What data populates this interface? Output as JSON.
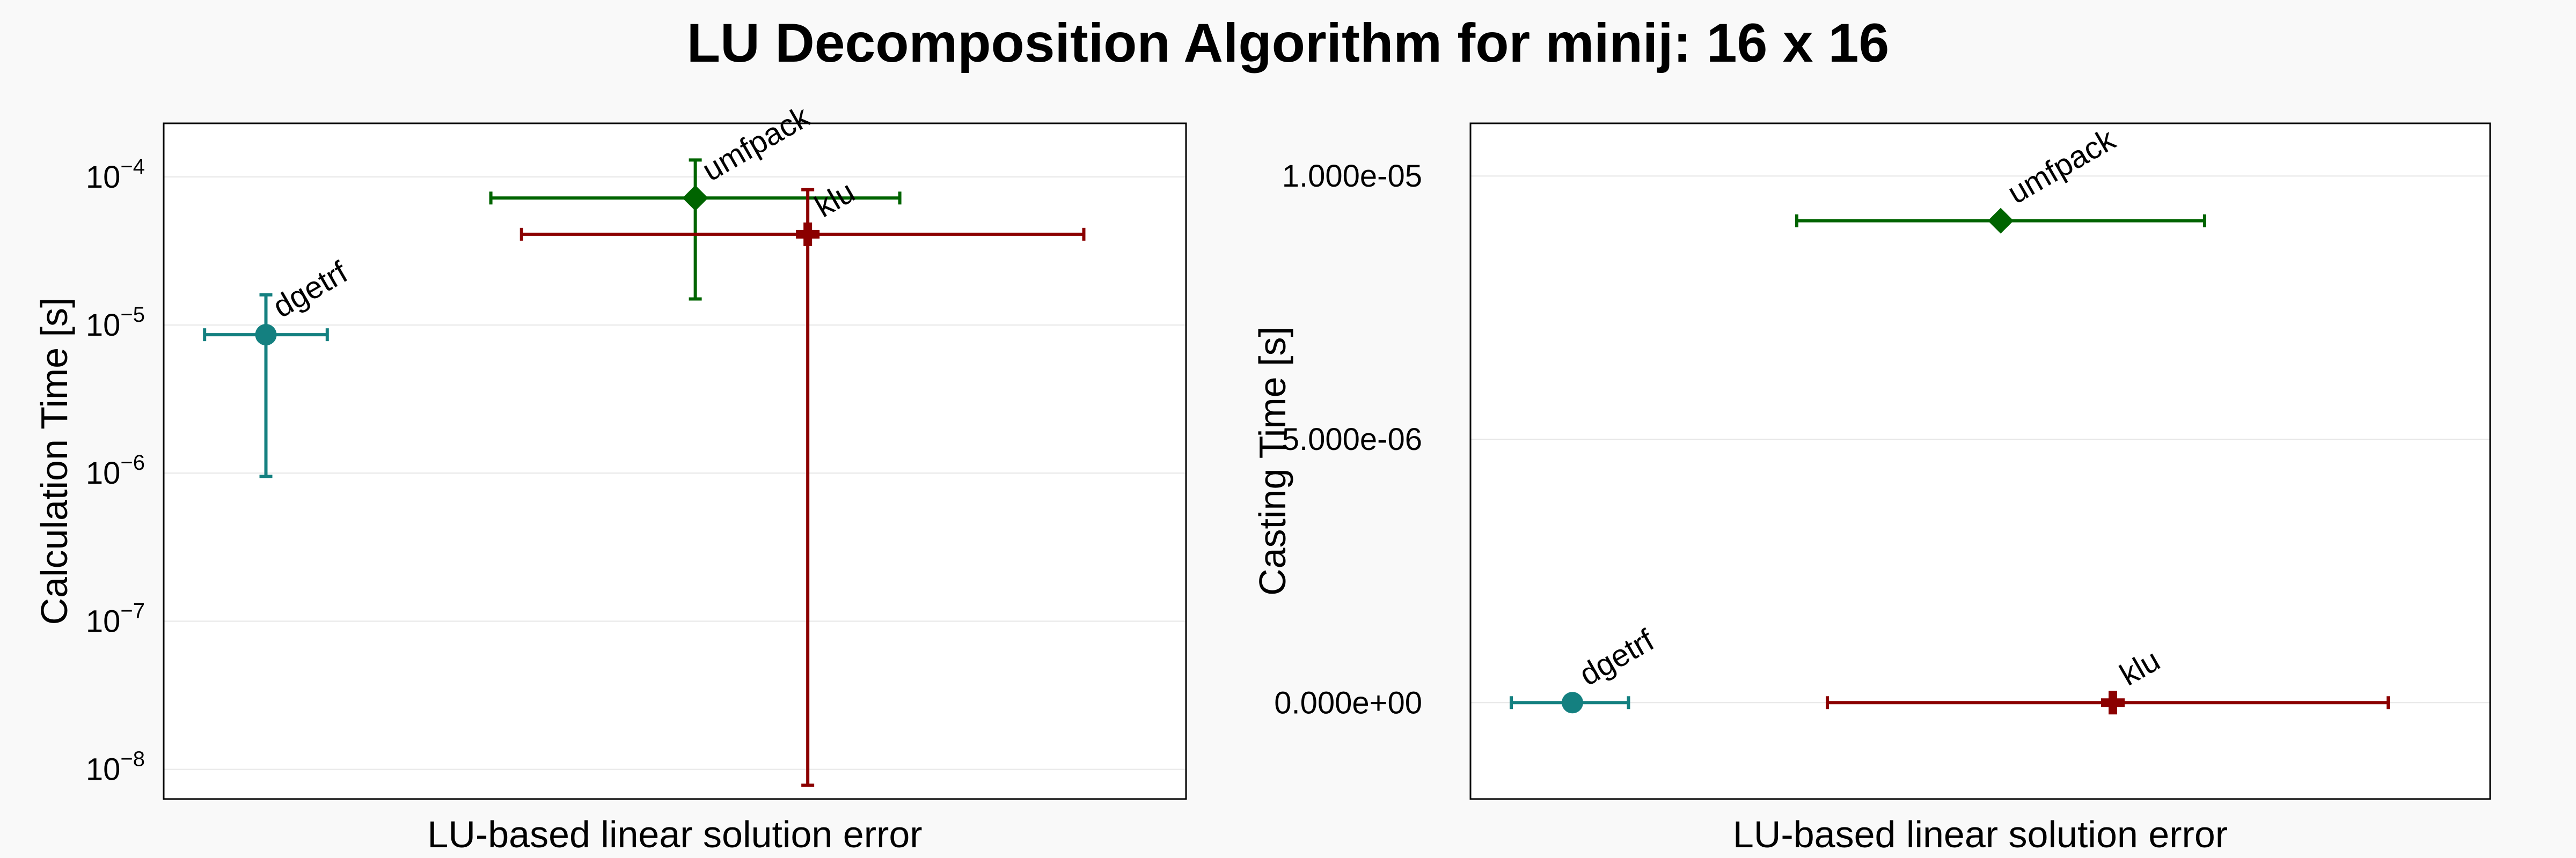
{
  "title": "LU Decomposition Algorithm for minij: 16 x 16",
  "colors": {
    "background": "#f9f9f9",
    "plot_background": "#ffffff",
    "grid": "#e6e6e6",
    "dgetrf": "#148080",
    "umfpack": "#006400",
    "klu": "#8b0000"
  },
  "chart_data": [
    {
      "type": "scatter",
      "panel": "left",
      "xlabel": "LU-based linear solution error",
      "ylabel": "Calculation Time [s]",
      "yscale": "log",
      "ylim": [
        6.3e-09,
        0.00023
      ],
      "xlim": [
        0,
        1
      ],
      "x_ticks_visible": false,
      "grid": true,
      "yticks": [
        {
          "value": 1e-08,
          "base": "10",
          "exp": "−8"
        },
        {
          "value": 1e-07,
          "base": "10",
          "exp": "−7"
        },
        {
          "value": 1e-06,
          "base": "10",
          "exp": "−6"
        },
        {
          "value": 1e-05,
          "base": "10",
          "exp": "−5"
        },
        {
          "value": 0.0001,
          "base": "10",
          "exp": "−4"
        }
      ],
      "series": [
        {
          "name": "dgetrf",
          "marker": "circle",
          "x": 0.1,
          "x_err": [
            0.04,
            0.16
          ],
          "y": 8.6e-06,
          "y_err": [
            9.5e-07,
            1.6e-05
          ]
        },
        {
          "name": "umfpack",
          "marker": "diamond",
          "x": 0.52,
          "x_err": [
            0.32,
            0.72
          ],
          "y": 7.2e-05,
          "y_err": [
            1.5e-05,
            0.00013
          ]
        },
        {
          "name": "klu",
          "marker": "cross",
          "x": 0.63,
          "x_err": [
            0.35,
            0.9
          ],
          "y": 4.1e-05,
          "y_err": [
            7.8e-09,
            8.2e-05
          ]
        }
      ]
    },
    {
      "type": "scatter",
      "panel": "right",
      "xlabel": "LU-based linear solution error",
      "ylabel": "Casting Time [s]",
      "yscale": "linear",
      "ylim": [
        -1.83e-06,
        1.1e-05
      ],
      "xlim": [
        0,
        1
      ],
      "x_ticks_visible": false,
      "grid": true,
      "yticks": [
        {
          "value": 0,
          "label": "0.000e+00"
        },
        {
          "value": 5e-06,
          "label": "5.000e-06"
        },
        {
          "value": 1e-05,
          "label": "1.000e-05"
        }
      ],
      "series": [
        {
          "name": "dgetrf",
          "marker": "circle",
          "x": 0.1,
          "x_err": [
            0.04,
            0.155
          ],
          "y": 0
        },
        {
          "name": "umfpack",
          "marker": "diamond",
          "x": 0.52,
          "x_err": [
            0.32,
            0.72
          ],
          "y": 9.15e-06
        },
        {
          "name": "klu",
          "marker": "cross",
          "x": 0.63,
          "x_err": [
            0.35,
            0.9
          ],
          "y": 0
        }
      ]
    }
  ]
}
